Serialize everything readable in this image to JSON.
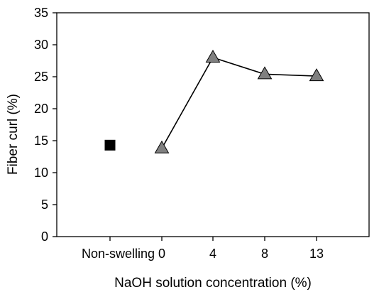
{
  "chart_data": {
    "type": "scatter",
    "title": "",
    "xlabel": "NaOH solution concentration (%)",
    "ylabel": "Fiber curl (%)",
    "ylim": [
      0,
      35
    ],
    "yticks": [
      0,
      5,
      10,
      15,
      20,
      25,
      30,
      35
    ],
    "categories": [
      "Non-swelling",
      "0",
      "4",
      "8",
      "13"
    ],
    "grid": false,
    "legend": "none",
    "series": [
      {
        "marker": "square",
        "color": "#000000",
        "line": false,
        "points": [
          {
            "x": "Non-swelling",
            "y": 14.3
          }
        ]
      },
      {
        "marker": "triangle",
        "color": "#808080",
        "line": true,
        "points": [
          {
            "x": "0",
            "y": 13.8
          },
          {
            "x": "4",
            "y": 28.0
          },
          {
            "x": "8",
            "y": 25.4
          },
          {
            "x": "13",
            "y": 25.1
          }
        ]
      }
    ]
  }
}
